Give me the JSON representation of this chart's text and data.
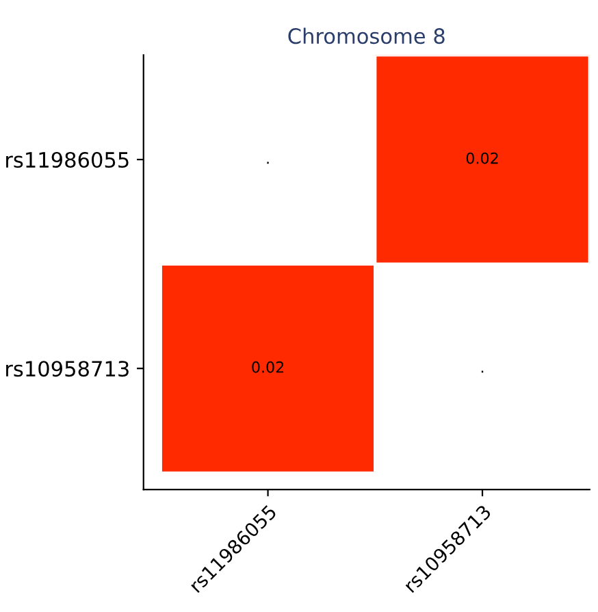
{
  "chart_data": {
    "type": "heatmap",
    "title": "Chromosome 8",
    "categories": [
      "rs11986055",
      "rs10958713"
    ],
    "y_categories": [
      "rs11986055",
      "rs10958713"
    ],
    "cells": [
      [
        null,
        0.02
      ],
      [
        0.02,
        null
      ]
    ],
    "cell_labels": [
      [
        ".",
        "0.02"
      ],
      [
        "0.02",
        "."
      ]
    ],
    "color": "#ff2a00",
    "grid": false
  }
}
